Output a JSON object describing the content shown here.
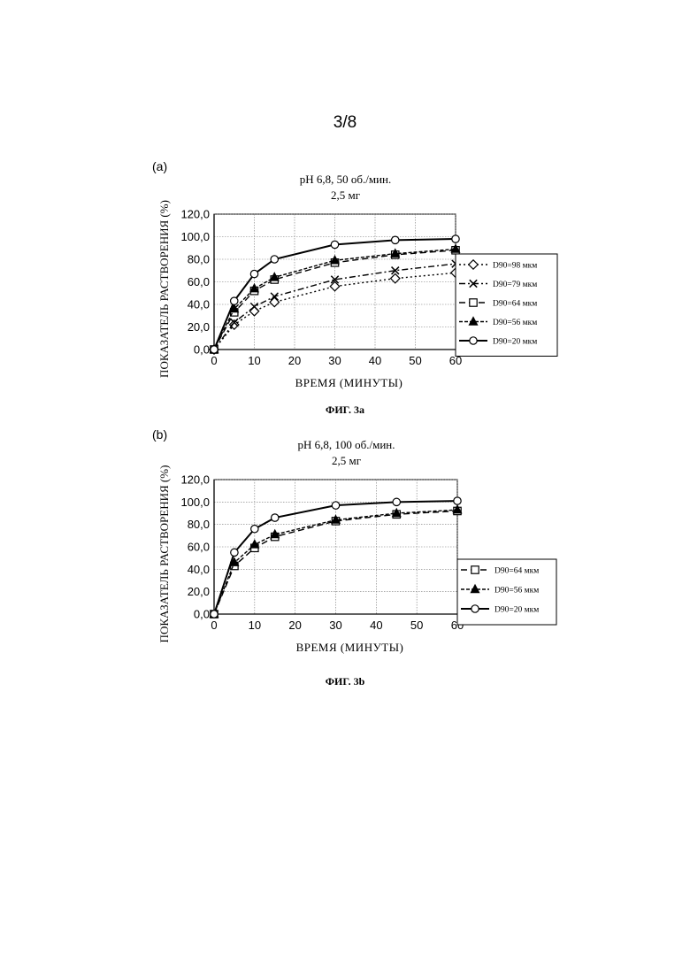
{
  "page": {
    "number": "3/8"
  },
  "chart_data": [
    {
      "type": "line",
      "panel_label": "(a)",
      "title": "pH 6,8, 50 об./мин.",
      "subtitle": "2,5 мг",
      "xlabel": "ВРЕМЯ (МИНУТЫ)",
      "ylabel": "ПОКАЗАТЕЛЬ РАСТВОРЕНИЯ (%)",
      "caption": "ФИГ. 3a",
      "xlim": [
        0,
        60
      ],
      "ylim": [
        0,
        120
      ],
      "x_ticks": [
        "0",
        "10",
        "20",
        "30",
        "40",
        "50",
        "60"
      ],
      "y_ticks": [
        "0,0",
        "20,0",
        "40,0",
        "60,0",
        "80,0",
        "100,0",
        "120,0"
      ],
      "grid": true,
      "legend_position": "right",
      "x": [
        0,
        5,
        10,
        15,
        30,
        45,
        60
      ],
      "series": [
        {
          "name": "D90=98 мкм",
          "marker": "diamond",
          "dash": "2,3",
          "values": [
            0,
            22,
            34,
            42,
            56,
            63,
            68
          ]
        },
        {
          "name": "D90=79 мкм",
          "marker": "x",
          "dash": "7,3,2,3",
          "values": [
            0,
            24,
            38,
            47,
            62,
            70,
            76
          ]
        },
        {
          "name": "D90=64 мкм",
          "marker": "square",
          "dash": "7,4",
          "values": [
            0,
            33,
            52,
            62,
            77,
            84,
            88
          ]
        },
        {
          "name": "D90=56 мкм",
          "marker": "triangle",
          "dash": "4,2",
          "values": [
            0,
            36,
            54,
            64,
            79,
            85,
            89
          ]
        },
        {
          "name": "D90=20 мкм",
          "marker": "circle",
          "dash": "",
          "values": [
            0,
            43,
            67,
            80,
            93,
            97,
            98
          ]
        }
      ]
    },
    {
      "type": "line",
      "panel_label": "(b)",
      "title": "pH 6,8, 100 об./мин.",
      "subtitle": "2,5 мг",
      "xlabel": "ВРЕМЯ (МИНУТЫ)",
      "ylabel": "ПОКАЗАТЕЛЬ РАСТВОРЕНИЯ (%)",
      "caption": "ФИГ. 3b",
      "xlim": [
        0,
        60
      ],
      "ylim": [
        0,
        120
      ],
      "x_ticks": [
        "0",
        "10",
        "20",
        "30",
        "40",
        "50",
        "60"
      ],
      "y_ticks": [
        "0,0",
        "20,0",
        "40,0",
        "60,0",
        "80,0",
        "100,0",
        "120,0"
      ],
      "grid": true,
      "legend_position": "right",
      "x": [
        0,
        5,
        10,
        15,
        30,
        45,
        60
      ],
      "series": [
        {
          "name": "D90=64 мкм",
          "marker": "square",
          "dash": "7,4",
          "values": [
            0,
            43,
            59,
            69,
            83,
            89,
            92
          ]
        },
        {
          "name": "D90=56 мкм",
          "marker": "triangle",
          "dash": "4,2",
          "values": [
            0,
            46,
            62,
            71,
            84,
            90,
            93
          ]
        },
        {
          "name": "D90=20 мкм",
          "marker": "circle",
          "dash": "",
          "values": [
            0,
            55,
            76,
            86,
            97,
            100,
            101
          ]
        }
      ]
    }
  ]
}
